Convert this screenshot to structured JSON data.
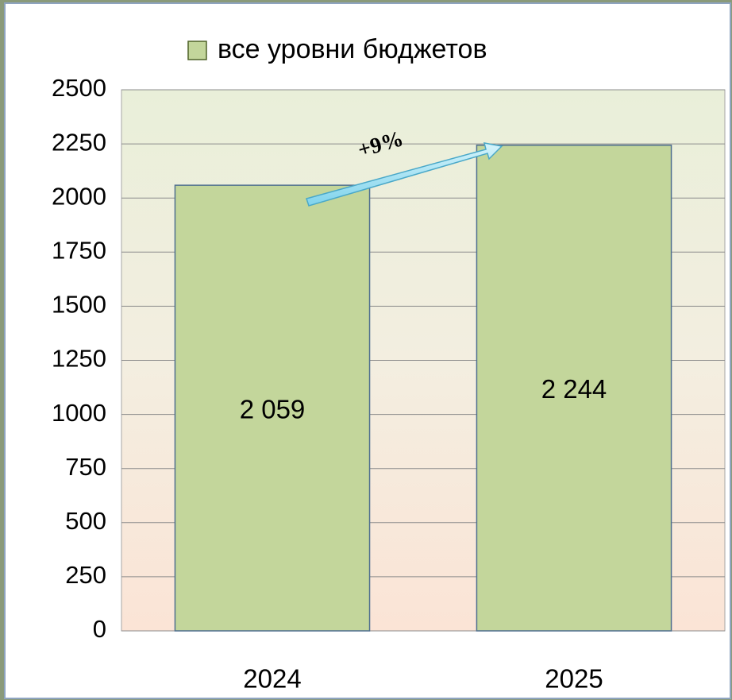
{
  "chart_data": {
    "type": "bar",
    "categories": [
      "2024",
      "2025"
    ],
    "series": [
      {
        "name": "все уровни бюджетов",
        "color": "#c3d69b",
        "values": [
          2059,
          2244
        ],
        "value_labels": [
          "2 059",
          "2 244"
        ]
      }
    ],
    "ylim": [
      0,
      2500
    ],
    "yticks": [
      0,
      250,
      500,
      750,
      1000,
      1250,
      1500,
      1750,
      2000,
      2250,
      2500
    ],
    "grid": true,
    "legend": "top",
    "annotations": [
      "+9%"
    ]
  }
}
